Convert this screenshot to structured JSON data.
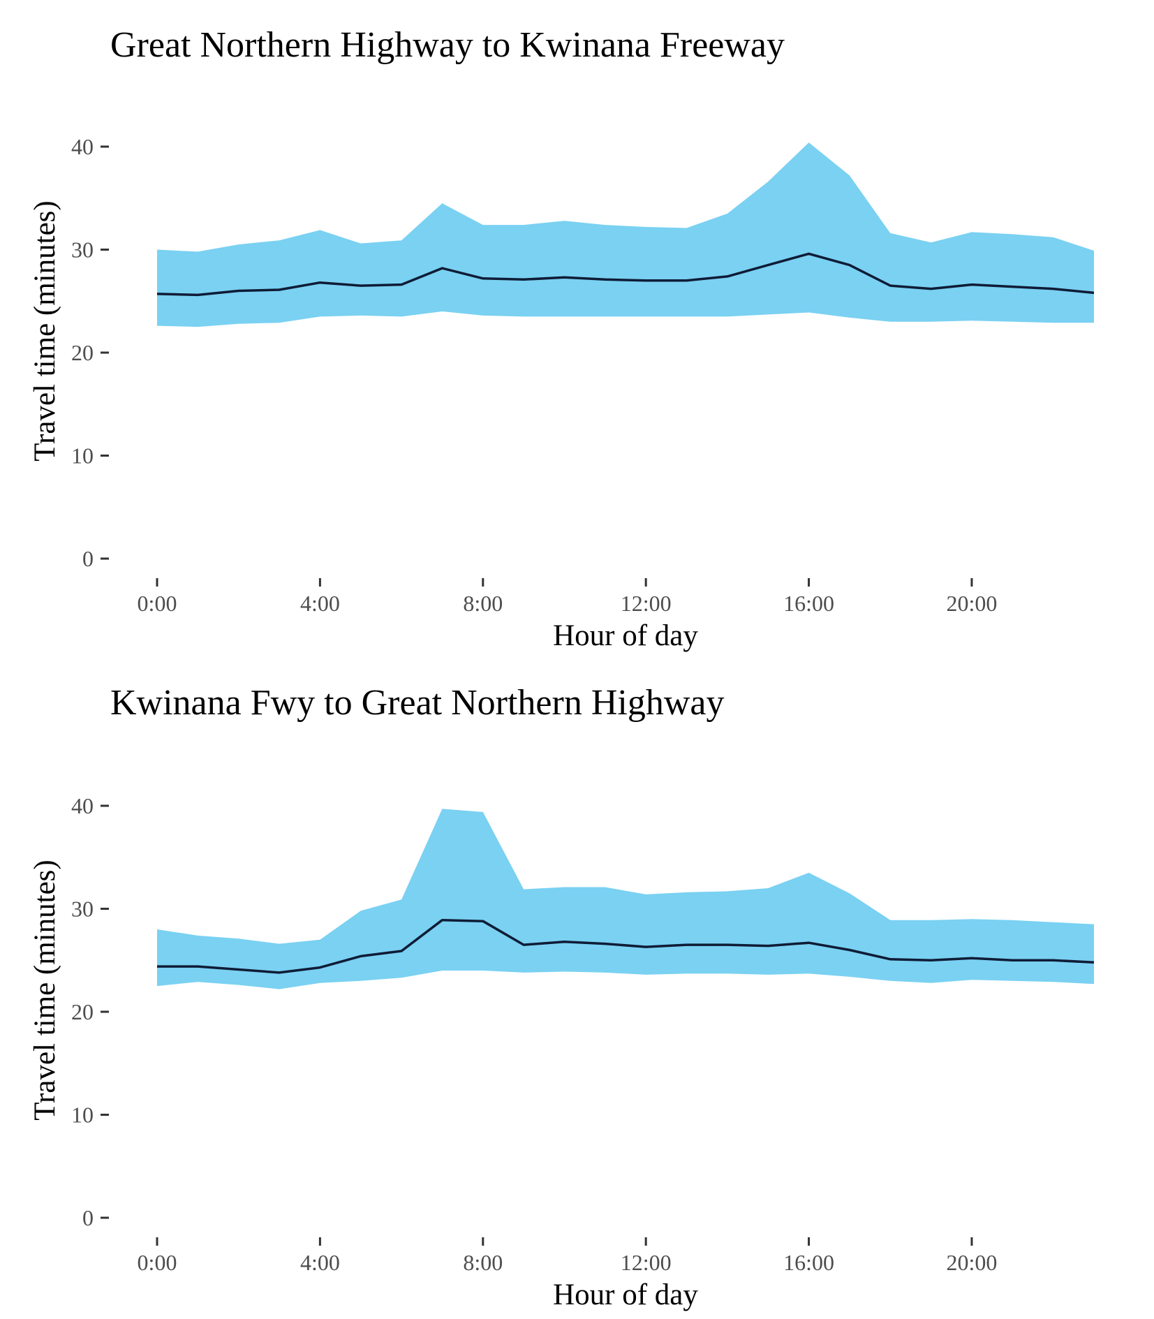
{
  "colors": {
    "band": "#7ad1f2",
    "median": "#0f1c36",
    "tick_text": "#4d4d4d"
  },
  "chart_data": [
    {
      "type": "area",
      "title": "Great Northern Highway to Kwinana Freeway",
      "xlabel": "Hour of day",
      "ylabel": "Travel time (minutes)",
      "ylim": [
        0,
        40
      ],
      "xlim": [
        0,
        23
      ],
      "x_ticks": [
        "0:00",
        "4:00",
        "8:00",
        "12:00",
        "16:00",
        "20:00"
      ],
      "y_ticks": [
        "0",
        "10",
        "20",
        "30",
        "40"
      ],
      "grid": false,
      "x": [
        0,
        1,
        2,
        3,
        4,
        5,
        6,
        7,
        8,
        9,
        10,
        11,
        12,
        13,
        14,
        15,
        16,
        17,
        18,
        19,
        20,
        21,
        22,
        23
      ],
      "series": [
        {
          "role": "band_upper",
          "values": [
            30.0,
            29.8,
            30.5,
            30.9,
            31.9,
            30.6,
            30.9,
            34.5,
            32.4,
            32.4,
            32.8,
            32.4,
            32.2,
            32.1,
            33.5,
            36.6,
            40.4,
            37.2,
            31.6,
            30.7,
            31.7,
            31.5,
            31.2,
            29.9
          ]
        },
        {
          "role": "line",
          "values": [
            25.7,
            25.6,
            26.0,
            26.1,
            26.8,
            26.5,
            26.6,
            28.2,
            27.2,
            27.1,
            27.3,
            27.1,
            27.0,
            27.0,
            27.4,
            28.5,
            29.6,
            28.5,
            26.5,
            26.2,
            26.6,
            26.4,
            26.2,
            25.8
          ]
        },
        {
          "role": "band_lower",
          "values": [
            22.6,
            22.5,
            22.8,
            22.9,
            23.5,
            23.6,
            23.5,
            24.0,
            23.6,
            23.5,
            23.5,
            23.5,
            23.5,
            23.5,
            23.5,
            23.7,
            23.9,
            23.4,
            23.0,
            23.0,
            23.1,
            23.0,
            22.9,
            22.9
          ]
        }
      ]
    },
    {
      "type": "area",
      "title": "Kwinana Fwy to Great Northern Highway",
      "xlabel": "Hour of day",
      "ylabel": "Travel time (minutes)",
      "ylim": [
        0,
        40
      ],
      "xlim": [
        0,
        23
      ],
      "x_ticks": [
        "0:00",
        "4:00",
        "8:00",
        "12:00",
        "16:00",
        "20:00"
      ],
      "y_ticks": [
        "0",
        "10",
        "20",
        "30",
        "40"
      ],
      "grid": false,
      "x": [
        0,
        1,
        2,
        3,
        4,
        5,
        6,
        7,
        8,
        9,
        10,
        11,
        12,
        13,
        14,
        15,
        16,
        17,
        18,
        19,
        20,
        21,
        22,
        23
      ],
      "series": [
        {
          "role": "band_upper",
          "values": [
            28.0,
            27.4,
            27.1,
            26.6,
            27.0,
            29.8,
            30.9,
            39.7,
            39.4,
            31.9,
            32.1,
            32.1,
            31.4,
            31.6,
            31.7,
            32.0,
            33.5,
            31.5,
            28.9,
            28.9,
            29.0,
            28.9,
            28.7,
            28.5
          ]
        },
        {
          "role": "line",
          "values": [
            24.4,
            24.4,
            24.1,
            23.8,
            24.3,
            25.4,
            25.9,
            28.9,
            28.8,
            26.5,
            26.8,
            26.6,
            26.3,
            26.5,
            26.5,
            26.4,
            26.7,
            26.0,
            25.1,
            25.0,
            25.2,
            25.0,
            25.0,
            24.8
          ]
        },
        {
          "role": "band_lower",
          "values": [
            22.5,
            22.9,
            22.6,
            22.2,
            22.8,
            23.0,
            23.3,
            24.0,
            24.0,
            23.8,
            23.9,
            23.8,
            23.6,
            23.7,
            23.7,
            23.6,
            23.7,
            23.4,
            23.0,
            22.8,
            23.1,
            23.0,
            22.9,
            22.7
          ]
        }
      ]
    }
  ]
}
